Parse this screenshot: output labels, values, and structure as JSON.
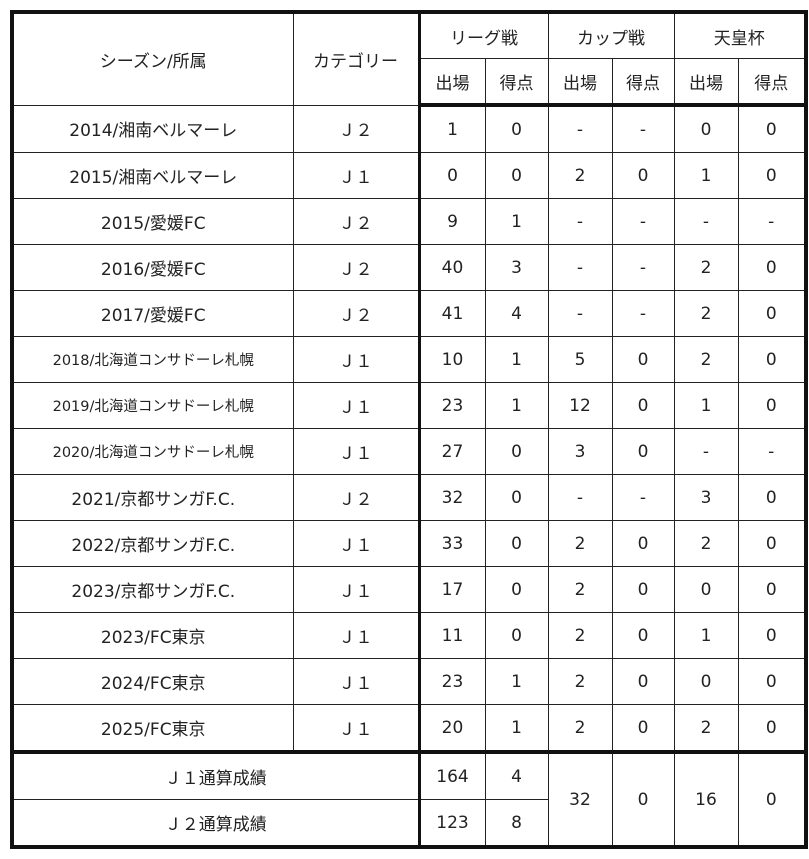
{
  "header": {
    "season": "シーズン/所属",
    "category": "カテゴリー",
    "groups": [
      "リーグ戦",
      "カップ戦",
      "天皇杯"
    ],
    "sub": [
      "出場",
      "得点"
    ]
  },
  "rows": [
    {
      "season": "2014/湘南ベルマーレ",
      "cat": "Ｊ２",
      "stats": [
        "1",
        "0",
        "-",
        "-",
        "0",
        "0"
      ]
    },
    {
      "season": "2015/湘南ベルマーレ",
      "cat": "Ｊ１",
      "stats": [
        "0",
        "0",
        "2",
        "0",
        "1",
        "0"
      ]
    },
    {
      "season": "2015/愛媛FC",
      "cat": "Ｊ２",
      "stats": [
        "9",
        "1",
        "-",
        "-",
        "-",
        "-"
      ]
    },
    {
      "season": "2016/愛媛FC",
      "cat": "Ｊ２",
      "stats": [
        "40",
        "3",
        "-",
        "-",
        "2",
        "0"
      ]
    },
    {
      "season": "2017/愛媛FC",
      "cat": "Ｊ２",
      "stats": [
        "41",
        "4",
        "-",
        "-",
        "2",
        "0"
      ]
    },
    {
      "season": "2018/北海道コンサドーレ札幌",
      "cat": "Ｊ１",
      "stats": [
        "10",
        "1",
        "5",
        "0",
        "2",
        "0"
      ]
    },
    {
      "season": "2019/北海道コンサドーレ札幌",
      "cat": "Ｊ１",
      "stats": [
        "23",
        "1",
        "12",
        "0",
        "1",
        "0"
      ]
    },
    {
      "season": "2020/北海道コンサドーレ札幌",
      "cat": "Ｊ１",
      "stats": [
        "27",
        "0",
        "3",
        "0",
        "-",
        "-"
      ]
    },
    {
      "season": "2021/京都サンガF.C.",
      "cat": "Ｊ２",
      "stats": [
        "32",
        "0",
        "-",
        "-",
        "3",
        "0"
      ]
    },
    {
      "season": "2022/京都サンガF.C.",
      "cat": "Ｊ１",
      "stats": [
        "33",
        "0",
        "2",
        "0",
        "2",
        "0"
      ]
    },
    {
      "season": "2023/京都サンガF.C.",
      "cat": "Ｊ１",
      "stats": [
        "17",
        "0",
        "2",
        "0",
        "0",
        "0"
      ]
    },
    {
      "season": "2023/FC東京",
      "cat": "Ｊ１",
      "stats": [
        "11",
        "0",
        "2",
        "0",
        "1",
        "0"
      ]
    },
    {
      "season": "2024/FC東京",
      "cat": "Ｊ１",
      "stats": [
        "23",
        "1",
        "2",
        "0",
        "0",
        "0"
      ]
    },
    {
      "season": "2025/FC東京",
      "cat": "Ｊ１",
      "stats": [
        "20",
        "1",
        "2",
        "0",
        "2",
        "0"
      ]
    }
  ],
  "totals": {
    "j1": {
      "label": "Ｊ１通算成績",
      "league_apps": "164",
      "league_goals": "4"
    },
    "j2": {
      "label": "Ｊ２通算成績",
      "league_apps": "123",
      "league_goals": "8"
    },
    "cup_apps": "32",
    "cup_goals": "0",
    "emperor_apps": "16",
    "emperor_goals": "0"
  }
}
